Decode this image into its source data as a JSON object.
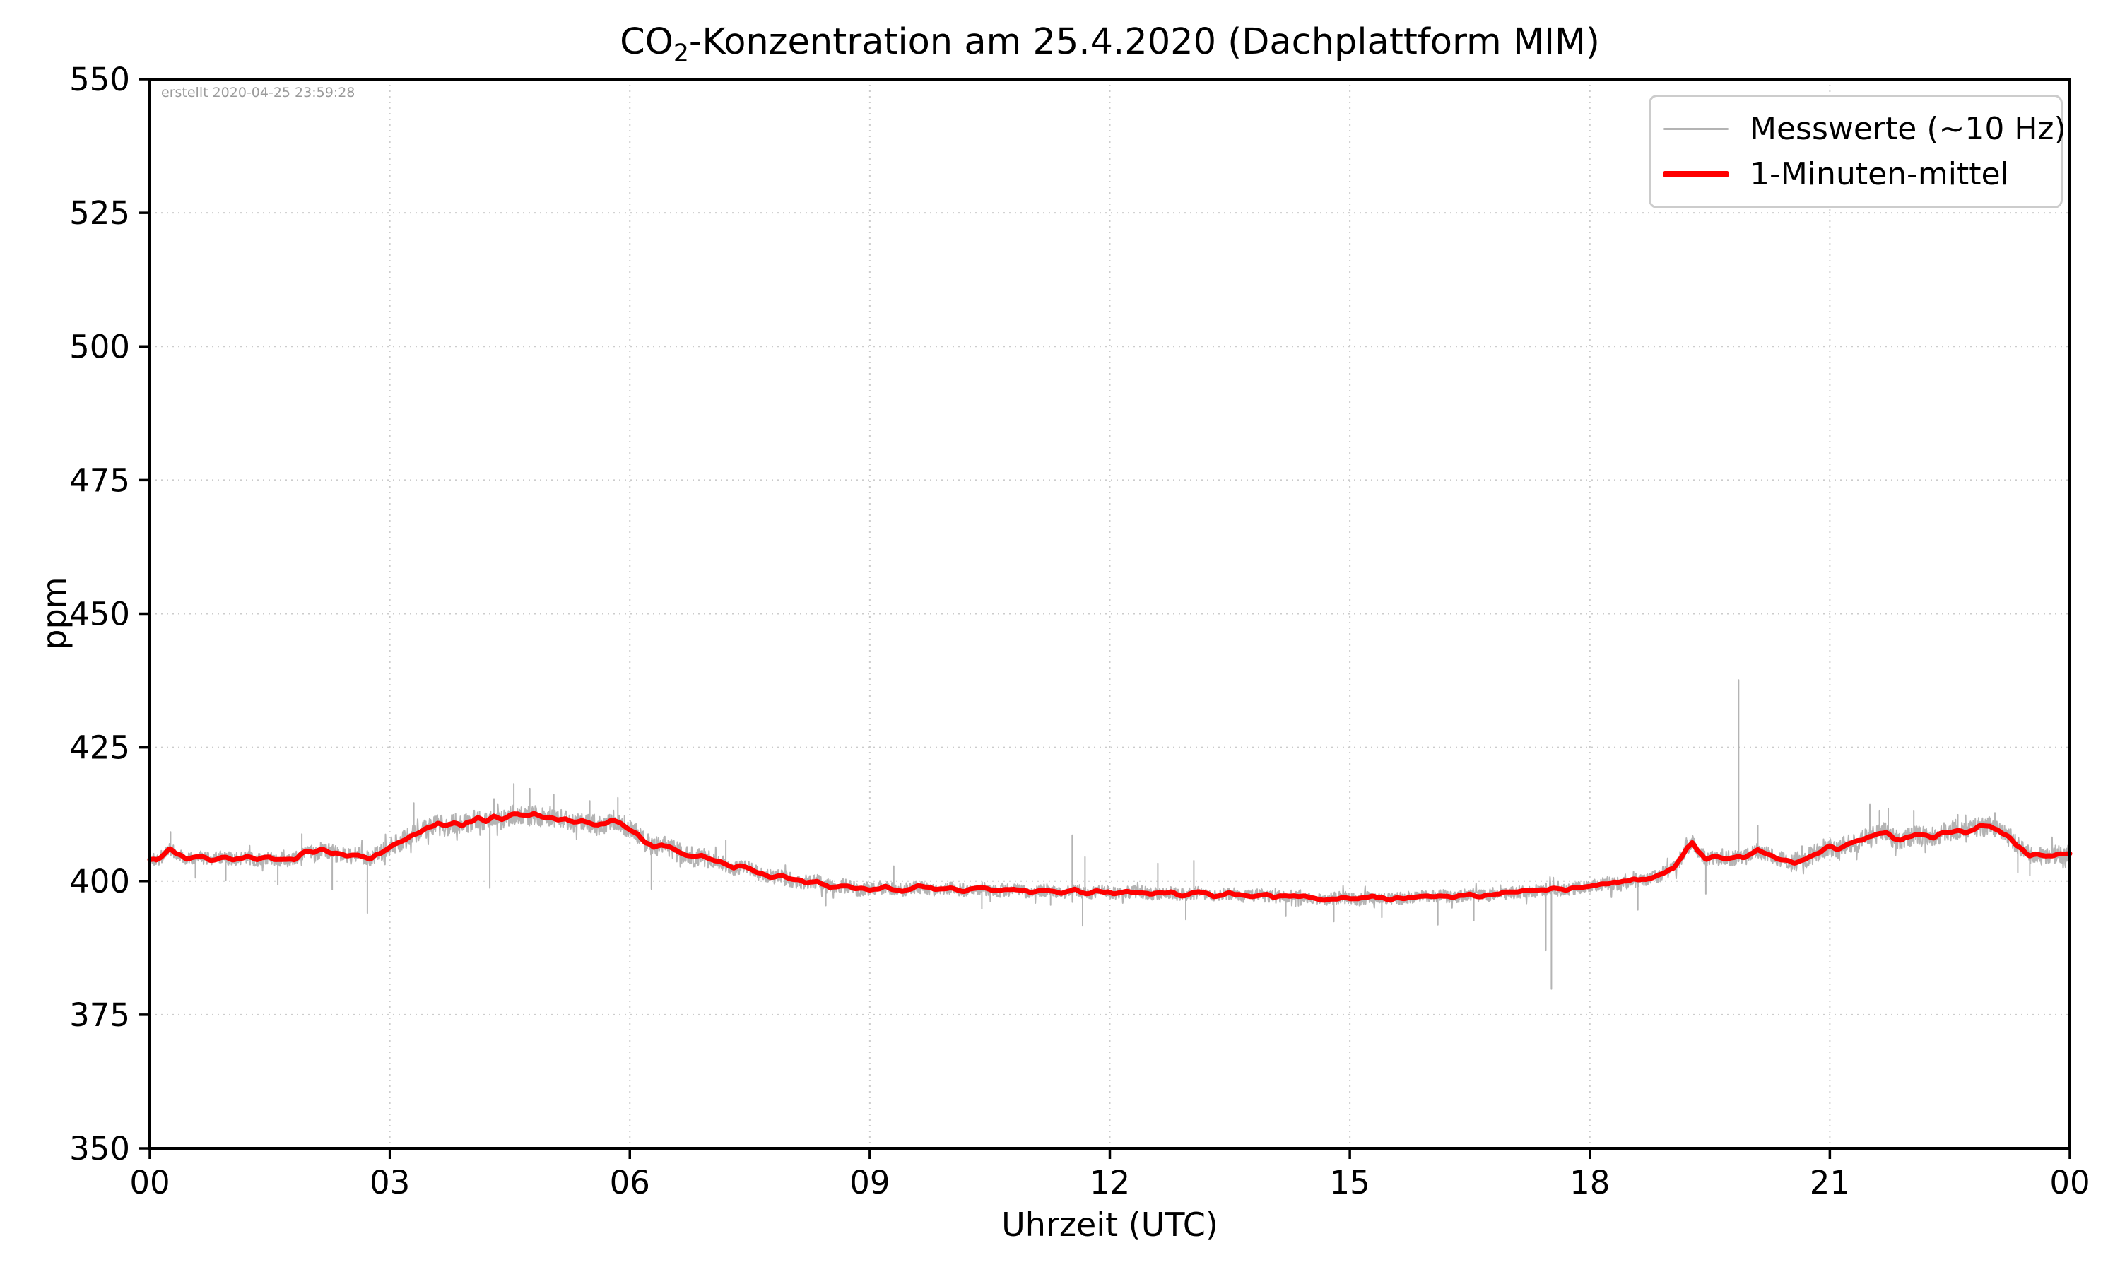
{
  "figure": {
    "title_prefix": "CO",
    "title_sub": "2",
    "title_rest": "-Konzentration am 25.4.2020 (Dachplattform MIM)",
    "created_stamp": "erstellt 2020-04-25 23:59:28"
  },
  "legend": {
    "items": [
      {
        "label": "Messwerte (~10 Hz)",
        "color": "#b4b4b4",
        "thickness": 3
      },
      {
        "label": "1-Minuten-mittel",
        "color": "#ff0000",
        "thickness": 9
      }
    ]
  },
  "colors": {
    "grid": "#cccccc",
    "spine": "#000000",
    "raw_series": "#b4b4b4",
    "mean_series": "#ff0000",
    "stamp_text": "#9a9a9a"
  },
  "chart_data": {
    "type": "line",
    "title": "CO2-Konzentration am 25.4.2020 (Dachplattform MIM)",
    "xlabel": "Uhrzeit (UTC)",
    "ylabel": "ppm",
    "xlim": [
      0,
      24
    ],
    "ylim": [
      350,
      550
    ],
    "grid": true,
    "legend_position": "upper right",
    "x_ticks": [
      0,
      3,
      6,
      9,
      12,
      15,
      18,
      21,
      24
    ],
    "x_tick_labels": [
      "00",
      "03",
      "06",
      "09",
      "12",
      "15",
      "18",
      "21",
      "00"
    ],
    "y_ticks": [
      350,
      375,
      400,
      425,
      450,
      475,
      500,
      525,
      550
    ],
    "series": [
      {
        "name": "Messwerte (~10 Hz)",
        "color": "#b4b4b4",
        "style": "raw-noisy",
        "derived_from": "1-Minuten-mittel plus high-frequency noise band",
        "noise_profile": [
          [
            0,
            2,
            1.25
          ],
          [
            2,
            3,
            1.6
          ],
          [
            3,
            7,
            1.9
          ],
          [
            7,
            9,
            1.4
          ],
          [
            9,
            18,
            1.2
          ],
          [
            18,
            20.5,
            1.45
          ],
          [
            20.5,
            24,
            1.85
          ]
        ],
        "spikes": [
          [
            0.26,
            409.2
          ],
          [
            0.57,
            400.6
          ],
          [
            0.95,
            400.2
          ],
          [
            1.6,
            399.3
          ],
          [
            1.9,
            408.8
          ],
          [
            2.28,
            398.4
          ],
          [
            2.72,
            394.0
          ],
          [
            3.3,
            414.6
          ],
          [
            4.25,
            398.7
          ],
          [
            4.55,
            418.2
          ],
          [
            4.75,
            417.3
          ],
          [
            5.05,
            416.2
          ],
          [
            5.5,
            415.0
          ],
          [
            5.85,
            415.6
          ],
          [
            6.27,
            398.5
          ],
          [
            7.2,
            407.6
          ],
          [
            8.45,
            395.4
          ],
          [
            9.3,
            402.8
          ],
          [
            10.4,
            394.8
          ],
          [
            11.26,
            395.5
          ],
          [
            11.53,
            408.6
          ],
          [
            11.66,
            391.6
          ],
          [
            11.69,
            404.5
          ],
          [
            12.6,
            403.3
          ],
          [
            12.95,
            392.8
          ],
          [
            13.05,
            403.8
          ],
          [
            14.2,
            393.5
          ],
          [
            14.8,
            392.4
          ],
          [
            15.4,
            393.2
          ],
          [
            16.1,
            391.8
          ],
          [
            16.55,
            392.6
          ],
          [
            17.45,
            387.0
          ],
          [
            17.52,
            379.8
          ],
          [
            18.6,
            394.6
          ],
          [
            19.45,
            397.6
          ],
          [
            19.86,
            437.6
          ],
          [
            20.1,
            410.4
          ],
          [
            21.5,
            414.3
          ],
          [
            21.62,
            413.2
          ],
          [
            21.73,
            413.6
          ],
          [
            22.05,
            413.2
          ],
          [
            22.6,
            412.4
          ],
          [
            23.35,
            401.6
          ],
          [
            23.5,
            401.0
          ]
        ]
      },
      {
        "name": "1-Minuten-mittel",
        "color": "#ff0000",
        "style": "mean",
        "points": [
          [
            0,
            404.3
          ],
          [
            0.08,
            403.9
          ],
          [
            0.15,
            404.6
          ],
          [
            0.25,
            406.2
          ],
          [
            0.33,
            405.2
          ],
          [
            0.45,
            404.3
          ],
          [
            0.6,
            404.5
          ],
          [
            0.75,
            404.0
          ],
          [
            0.9,
            404.4
          ],
          [
            1.05,
            404.1
          ],
          [
            1.2,
            404.5
          ],
          [
            1.35,
            403.9
          ],
          [
            1.5,
            404.3
          ],
          [
            1.65,
            403.8
          ],
          [
            1.8,
            404.1
          ],
          [
            1.95,
            405.6
          ],
          [
            2.05,
            405.1
          ],
          [
            2.15,
            405.9
          ],
          [
            2.3,
            405.1
          ],
          [
            2.45,
            404.6
          ],
          [
            2.6,
            404.9
          ],
          [
            2.75,
            404.4
          ],
          [
            2.9,
            405.4
          ],
          [
            3.0,
            406.2
          ],
          [
            3.1,
            407.1
          ],
          [
            3.25,
            408.2
          ],
          [
            3.4,
            409.3
          ],
          [
            3.5,
            410.1
          ],
          [
            3.6,
            410.6
          ],
          [
            3.7,
            410.2
          ],
          [
            3.8,
            410.9
          ],
          [
            3.9,
            410.4
          ],
          [
            4.0,
            411.1
          ],
          [
            4.1,
            411.6
          ],
          [
            4.2,
            411.1
          ],
          [
            4.3,
            412.0
          ],
          [
            4.4,
            411.5
          ],
          [
            4.5,
            412.2
          ],
          [
            4.6,
            412.7
          ],
          [
            4.7,
            412.0
          ],
          [
            4.8,
            412.5
          ],
          [
            4.9,
            411.8
          ],
          [
            5.0,
            412.1
          ],
          [
            5.1,
            411.4
          ],
          [
            5.2,
            411.7
          ],
          [
            5.3,
            411.0
          ],
          [
            5.4,
            411.4
          ],
          [
            5.5,
            410.8
          ],
          [
            5.6,
            410.4
          ],
          [
            5.7,
            410.9
          ],
          [
            5.8,
            411.5
          ],
          [
            5.9,
            410.7
          ],
          [
            6.0,
            409.7
          ],
          [
            6.1,
            408.6
          ],
          [
            6.2,
            407.2
          ],
          [
            6.3,
            406.4
          ],
          [
            6.4,
            406.9
          ],
          [
            6.5,
            406.1
          ],
          [
            6.6,
            405.4
          ],
          [
            6.7,
            404.9
          ],
          [
            6.8,
            404.5
          ],
          [
            6.9,
            404.8
          ],
          [
            7.0,
            404.1
          ],
          [
            7.15,
            403.4
          ],
          [
            7.3,
            402.5
          ],
          [
            7.45,
            402.8
          ],
          [
            7.6,
            401.6
          ],
          [
            7.75,
            400.8
          ],
          [
            7.9,
            400.9
          ],
          [
            8.0,
            400.3
          ],
          [
            8.2,
            399.7
          ],
          [
            8.35,
            399.9
          ],
          [
            8.5,
            398.9
          ],
          [
            8.65,
            399.2
          ],
          [
            8.8,
            398.6
          ],
          [
            9.0,
            398.5
          ],
          [
            9.2,
            398.8
          ],
          [
            9.4,
            398.3
          ],
          [
            9.6,
            398.9
          ],
          [
            9.8,
            398.4
          ],
          [
            10.0,
            398.7
          ],
          [
            10.2,
            398.2
          ],
          [
            10.4,
            398.6
          ],
          [
            10.6,
            398.1
          ],
          [
            10.8,
            398.4
          ],
          [
            11.0,
            397.9
          ],
          [
            11.2,
            398.3
          ],
          [
            11.4,
            397.8
          ],
          [
            11.55,
            398.4
          ],
          [
            11.7,
            397.8
          ],
          [
            11.9,
            398.1
          ],
          [
            12.1,
            397.7
          ],
          [
            12.3,
            398.0
          ],
          [
            12.5,
            397.5
          ],
          [
            12.7,
            397.9
          ],
          [
            12.9,
            397.4
          ],
          [
            13.1,
            397.8
          ],
          [
            13.3,
            397.3
          ],
          [
            13.5,
            397.7
          ],
          [
            13.7,
            397.1
          ],
          [
            13.9,
            397.5
          ],
          [
            14.1,
            397.0
          ],
          [
            14.3,
            397.4
          ],
          [
            14.5,
            396.8
          ],
          [
            14.7,
            396.6
          ],
          [
            14.9,
            397.0
          ],
          [
            15.1,
            396.6
          ],
          [
            15.3,
            397.0
          ],
          [
            15.5,
            396.5
          ],
          [
            15.7,
            396.9
          ],
          [
            15.9,
            397.1
          ],
          [
            16.1,
            397.3
          ],
          [
            16.3,
            397.0
          ],
          [
            16.5,
            397.5
          ],
          [
            16.7,
            397.2
          ],
          [
            16.9,
            397.7
          ],
          [
            17.1,
            397.9
          ],
          [
            17.3,
            398.2
          ],
          [
            17.5,
            398.5
          ],
          [
            17.7,
            398.3
          ],
          [
            17.9,
            398.9
          ],
          [
            18.1,
            399.4
          ],
          [
            18.3,
            399.7
          ],
          [
            18.5,
            400.0
          ],
          [
            18.7,
            400.4
          ],
          [
            18.9,
            401.2
          ],
          [
            19.05,
            402.5
          ],
          [
            19.15,
            404.5
          ],
          [
            19.22,
            406.4
          ],
          [
            19.28,
            407.3
          ],
          [
            19.35,
            405.6
          ],
          [
            19.45,
            404.1
          ],
          [
            19.55,
            404.6
          ],
          [
            19.65,
            404.1
          ],
          [
            19.8,
            404.3
          ],
          [
            19.95,
            404.5
          ],
          [
            20.1,
            405.7
          ],
          [
            20.25,
            404.8
          ],
          [
            20.4,
            404.0
          ],
          [
            20.55,
            403.4
          ],
          [
            20.7,
            404.2
          ],
          [
            20.85,
            405.4
          ],
          [
            21.0,
            406.4
          ],
          [
            21.1,
            406.1
          ],
          [
            21.25,
            407.1
          ],
          [
            21.4,
            407.7
          ],
          [
            21.55,
            408.5
          ],
          [
            21.7,
            409.2
          ],
          [
            21.8,
            407.9
          ],
          [
            21.9,
            407.6
          ],
          [
            22.0,
            408.3
          ],
          [
            22.15,
            408.6
          ],
          [
            22.3,
            408.2
          ],
          [
            22.45,
            409.3
          ],
          [
            22.6,
            409.6
          ],
          [
            22.7,
            409.1
          ],
          [
            22.85,
            410.1
          ],
          [
            23.0,
            410.3
          ],
          [
            23.1,
            409.5
          ],
          [
            23.2,
            408.8
          ],
          [
            23.3,
            407.5
          ],
          [
            23.4,
            405.9
          ],
          [
            23.5,
            404.8
          ],
          [
            23.6,
            405.1
          ],
          [
            23.7,
            404.6
          ],
          [
            23.85,
            405.0
          ],
          [
            24,
            405.1
          ]
        ]
      }
    ]
  }
}
